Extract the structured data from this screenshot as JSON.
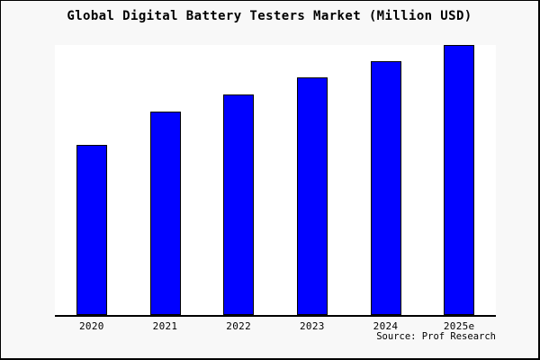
{
  "window": {
    "background": "#f8f8f8",
    "border_color": "#000000",
    "plot_background": "#ffffff"
  },
  "source": "Source: Prof Research",
  "chart_data": {
    "type": "bar",
    "title": "Global Digital Battery Testers Market (Million USD)",
    "categories": [
      "2020",
      "2021",
      "2022",
      "2023",
      "2024",
      "2025e"
    ],
    "values": [
      63,
      75.3,
      81.7,
      88,
      94,
      100
    ],
    "xlabel": "",
    "ylabel": "",
    "ylim": [
      0,
      100.3
    ],
    "y_axis_visible": false,
    "grid": false,
    "legend": "none",
    "bar_color": "#0000ff",
    "bar_border_color": "#000000"
  }
}
